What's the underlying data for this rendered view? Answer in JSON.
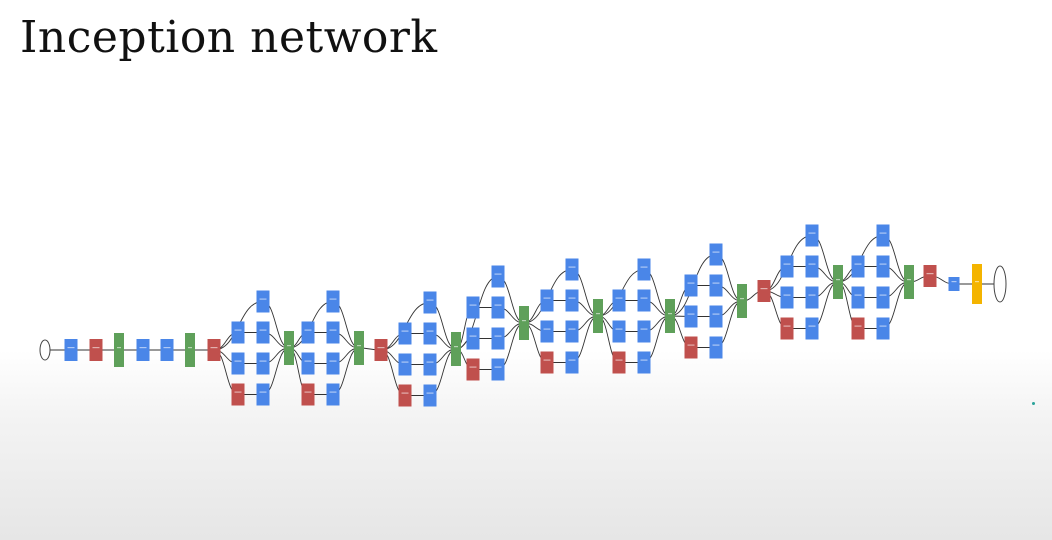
{
  "slide": {
    "title": "Inception network"
  },
  "diagram": {
    "description_role": "GoogLeNet architecture diagram",
    "colors": {
      "conv": "#4a86e8",
      "pool": "#c0504d",
      "concat": "#5fa05a",
      "fc": "#4a86e8",
      "softmax": "#f4b400",
      "edge": "#333333",
      "io": "#ffffff"
    },
    "legend_types": [
      "conv",
      "pool",
      "concat",
      "softmax"
    ]
  }
}
